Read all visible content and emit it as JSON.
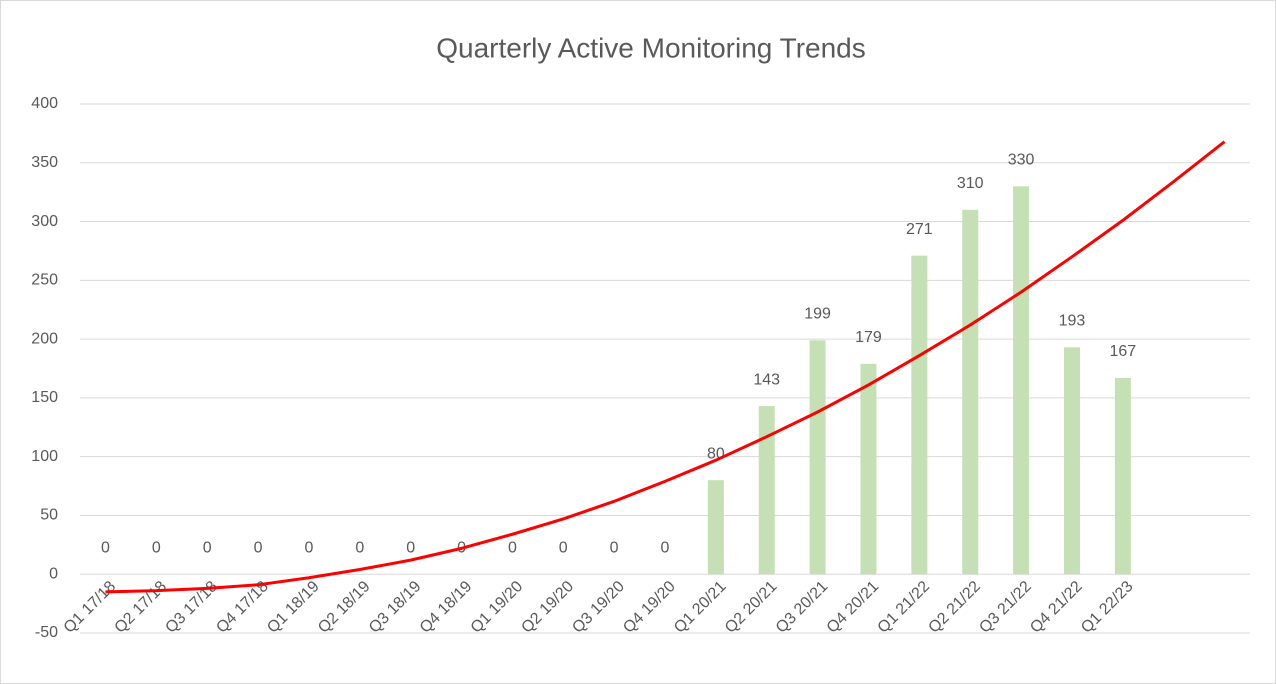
{
  "chart_data": {
    "type": "bar",
    "title": "Quarterly Active Monitoring Trends",
    "categories": [
      "Q1 17/18",
      "Q2 17/18",
      "Q3 17/18",
      "Q4 17/18",
      "Q1 18/19",
      "Q2 18/19",
      "Q3 18/19",
      "Q4 18/19",
      "Q1 19/20",
      "Q2 19/20",
      "Q3 19/20",
      "Q4 19/20",
      "Q1 20/21",
      "Q2 20/21",
      "Q3 20/21",
      "Q4 20/21",
      "Q1 21/22",
      "Q2 21/22",
      "Q3 21/22",
      "Q4 21/22",
      "Q1 22/23",
      null,
      null
    ],
    "series": [
      {
        "type": "bar",
        "color": "#c5e0b4",
        "values": [
          0,
          0,
          0,
          0,
          0,
          0,
          0,
          0,
          0,
          0,
          0,
          0,
          80,
          143,
          199,
          179,
          271,
          310,
          330,
          193,
          167,
          null,
          null
        ]
      },
      {
        "type": "line",
        "color": "#ff0000",
        "values": [
          -15,
          -14,
          -12,
          -9,
          -3,
          4,
          12,
          22,
          34,
          47,
          62,
          79,
          97,
          117,
          138,
          161,
          186,
          212,
          240,
          270,
          301,
          334,
          368
        ]
      }
    ],
    "ylim": [
      -50,
      400
    ],
    "yticks": [
      -50,
      0,
      50,
      100,
      150,
      200,
      250,
      300,
      350,
      400
    ],
    "grid": true
  }
}
